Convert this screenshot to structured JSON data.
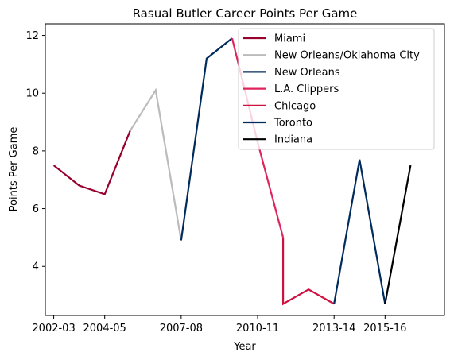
{
  "chart_data": {
    "type": "line",
    "title": "Rasual Butler Career Points Per Game",
    "xlabel": "Year",
    "ylabel": "Points Per Game",
    "x_ticks": [
      "2002-03",
      "2004-05",
      "2007-08",
      "2010-11",
      "2013-14",
      "2015-16"
    ],
    "y_ticks": [
      "4",
      "6",
      "8",
      "10",
      "12"
    ],
    "ylim": [
      2.3,
      12.4
    ],
    "grid": false,
    "legend_position": "top-right",
    "series": [
      {
        "name": "Miami",
        "color": "#98002E",
        "points": [
          [
            "2002-03",
            7.5
          ],
          [
            "2003-04",
            6.8
          ],
          [
            "2004-05",
            6.5
          ],
          [
            "2005-06",
            8.7
          ]
        ]
      },
      {
        "name": "New Orleans/Oklahoma City",
        "color": "#BBBBBB",
        "points": [
          [
            "2005-06",
            8.7
          ],
          [
            "2006-07",
            10.1
          ],
          [
            "2007-08",
            4.9
          ]
        ]
      },
      {
        "name": "New Orleans",
        "color": "#002B5C",
        "points": [
          [
            "2007-08",
            4.9
          ],
          [
            "2008-09",
            11.2
          ],
          [
            "2009-10",
            11.9
          ]
        ]
      },
      {
        "name": "L.A. Clippers",
        "color": "#E0245E",
        "points": [
          [
            "2009-10",
            11.9
          ],
          [
            "2010-11",
            8.3
          ],
          [
            "2011-12",
            5.0
          ]
        ]
      },
      {
        "name": "Chicago",
        "color": "#CE1141",
        "points": [
          [
            "2011-12",
            5.0
          ],
          [
            "2011-12",
            2.7
          ],
          [
            "2012-13",
            3.2
          ],
          [
            "2013-14",
            2.7
          ]
        ]
      },
      {
        "name": "Toronto",
        "color": "#002B5C",
        "points": [
          [
            "2013-14",
            2.7
          ],
          [
            "2014-15",
            7.7
          ],
          [
            "2015-16",
            2.7
          ]
        ]
      },
      {
        "name": "Indiana",
        "color": "#000000",
        "points": [
          [
            "2015-16",
            2.7
          ],
          [
            "2016-17",
            7.5
          ]
        ]
      }
    ]
  }
}
